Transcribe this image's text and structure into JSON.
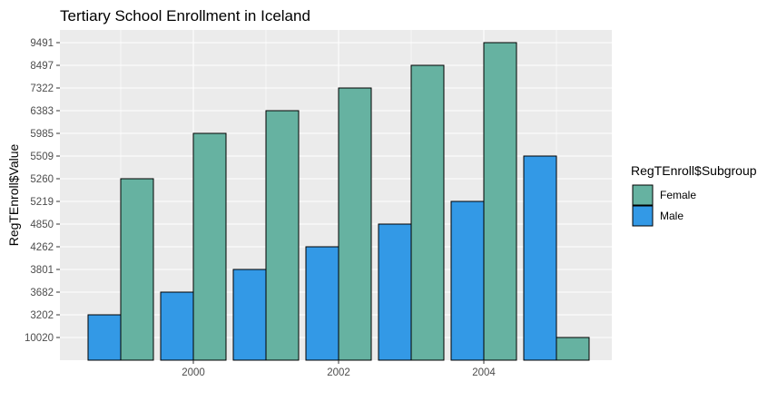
{
  "chart_data": {
    "type": "bar",
    "title": "Tertiary School Enrollment in Iceland",
    "xlabel": "",
    "ylabel": "RegTEnroll$Value",
    "x_tick_labels": [
      "2000",
      "2002",
      "2004"
    ],
    "y_tick_labels": [
      "10020",
      "3202",
      "3682",
      "3801",
      "4262",
      "4850",
      "5219",
      "5260",
      "5509",
      "5985",
      "6383",
      "7322",
      "8497",
      "9491"
    ],
    "y_scale": "discrete",
    "grid": true,
    "legend_position": "right",
    "legend_title": "RegTEnroll$Subgroup",
    "colors": {
      "Female": "#66b2a1",
      "Male": "#3399e6",
      "panel": "#ebebeb",
      "grid": "#ffffff"
    },
    "series": [
      {
        "name": "Male",
        "x": [
          "1999",
          "2000",
          "2001",
          "2002",
          "2003",
          "2004",
          "2005"
        ],
        "values": [
          "3202",
          "3682",
          "3801",
          "4262",
          "4850",
          "5219",
          "5509"
        ]
      },
      {
        "name": "Female",
        "x": [
          "1999",
          "2000",
          "2001",
          "2002",
          "2003",
          "2004",
          "2005"
        ],
        "values": [
          "5260",
          "5985",
          "6383",
          "7322",
          "8497",
          "9491",
          "10020"
        ]
      }
    ]
  }
}
